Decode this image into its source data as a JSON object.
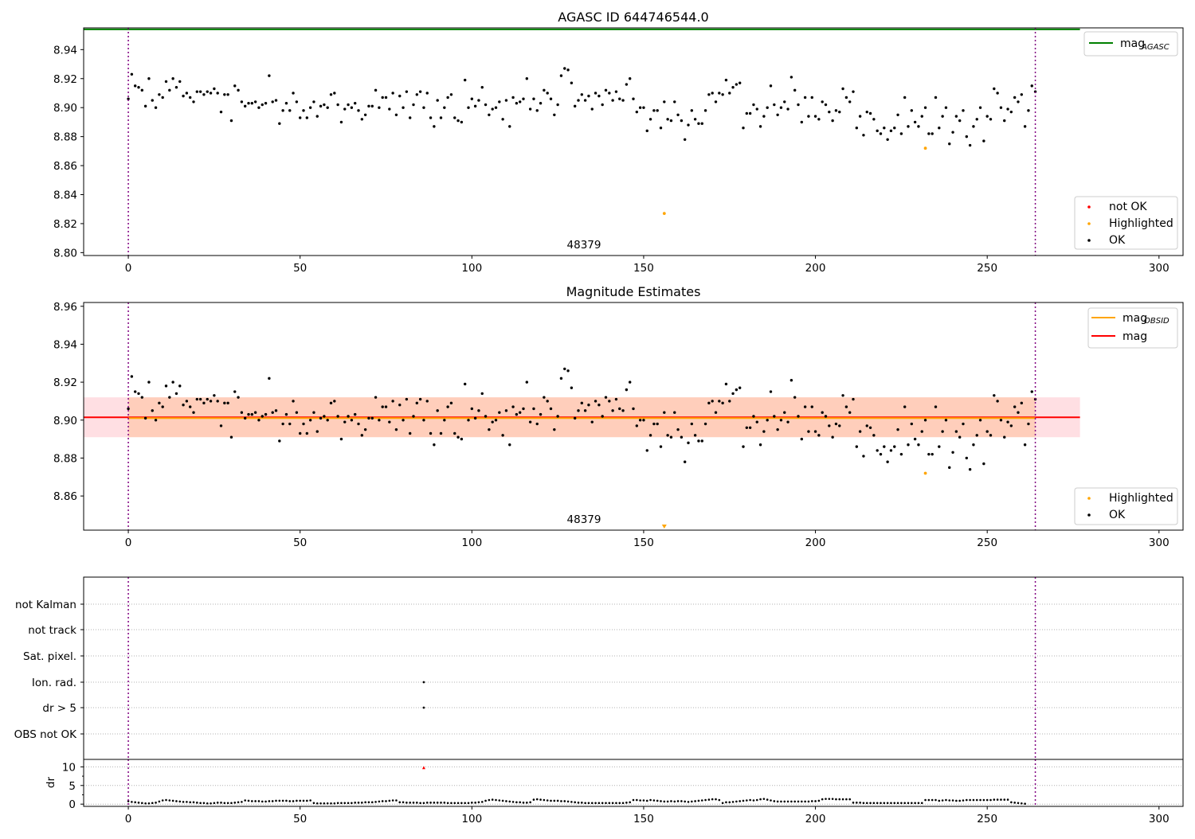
{
  "chart_data": [
    {
      "id": "top",
      "type": "scatter",
      "title": "AGASC ID 644746544.0",
      "annotation": "48379",
      "xlim": [
        -13,
        307
      ],
      "ylim": [
        8.798,
        8.955
      ],
      "xticks": [
        0,
        50,
        100,
        150,
        200,
        250,
        300
      ],
      "yticks": [
        8.8,
        8.82,
        8.84,
        8.86,
        8.88,
        8.9,
        8.92,
        8.94
      ],
      "ytick_labels": [
        "8.80",
        "8.82",
        "8.84",
        "8.86",
        "8.88",
        "8.90",
        "8.92",
        "8.94"
      ],
      "vlines": [
        0,
        264
      ],
      "mag_agasc": 8.954,
      "legend_lines": [
        {
          "label": "mag",
          "sub": "AGASC",
          "color": "#008000"
        }
      ],
      "legend_points": [
        {
          "label": "not OK",
          "color": "#ff0000"
        },
        {
          "label": "Highlighted",
          "color": "#ffa500"
        },
        {
          "label": "OK",
          "color": "#000000"
        }
      ],
      "highlighted": [
        {
          "x": 156,
          "y": 8.827
        },
        {
          "x": 232,
          "y": 8.872
        }
      ],
      "not_ok": []
    },
    {
      "id": "mid",
      "type": "scatter",
      "title": "Magnitude Estimates",
      "annotation": "48379",
      "xlim": [
        -13,
        307
      ],
      "ylim": [
        8.842,
        8.962
      ],
      "xticks": [
        0,
        50,
        100,
        150,
        200,
        250,
        300
      ],
      "yticks": [
        8.86,
        8.88,
        8.9,
        8.92,
        8.94,
        8.96
      ],
      "ytick_labels": [
        "8.86",
        "8.88",
        "8.90",
        "8.92",
        "8.94",
        "8.96"
      ],
      "vlines": [
        0,
        264
      ],
      "mag": 8.9015,
      "mag_obsid": 8.9015,
      "band": [
        8.891,
        8.912
      ],
      "legend_lines": [
        {
          "label": "mag",
          "sub": "OBSID",
          "color": "#ffa500"
        },
        {
          "label": "mag",
          "sub": "",
          "color": "#ff0000"
        }
      ],
      "legend_points": [
        {
          "label": "Highlighted",
          "color": "#ffa500"
        },
        {
          "label": "OK",
          "color": "#000000"
        }
      ],
      "highlighted": [
        {
          "x": 232,
          "y": 8.872
        }
      ],
      "offscale_marker": {
        "x": 156,
        "color": "#ffa500"
      }
    },
    {
      "id": "flags",
      "type": "scatter",
      "xlim": [
        -13,
        307
      ],
      "categories": [
        "not Kalman",
        "not track",
        "Sat. pixel.",
        "Ion. rad.",
        "dr > 5",
        "OBS not OK"
      ],
      "vlines": [
        0,
        264
      ],
      "flag_points": [
        {
          "x": 86,
          "category": "Ion. rad."
        },
        {
          "x": 86,
          "category": "dr > 5"
        }
      ]
    },
    {
      "id": "dr",
      "type": "scatter",
      "ylabel": "dr",
      "xlim": [
        -13,
        307
      ],
      "ylim": [
        -0.6,
        12
      ],
      "xticks": [
        0,
        50,
        100,
        150,
        200,
        250,
        300
      ],
      "yticks": [
        0,
        5,
        10
      ],
      "ytick_labels": [
        "0",
        "5",
        "10"
      ],
      "vlines": [
        0,
        264
      ],
      "outlier": {
        "x": 86,
        "y": 9.8,
        "color": "#ff0000"
      }
    }
  ],
  "colors": {
    "ok": "#000000",
    "highlighted": "#ffa500",
    "not_ok": "#ff0000",
    "vline": "#800080",
    "band_fill": "#ffc0c8",
    "band_fill_inner": "#ffd8c0"
  },
  "mag_series": [
    8.906,
    8.923,
    8.915,
    8.914,
    8.912,
    8.901,
    8.92,
    8.905,
    8.9,
    8.909,
    8.907,
    8.918,
    8.912,
    8.92,
    8.914,
    8.918,
    8.908,
    8.91,
    8.907,
    8.904,
    8.911,
    8.911,
    8.909,
    8.911,
    8.91,
    8.913,
    8.91,
    8.897,
    8.909,
    8.909,
    8.891,
    8.915,
    8.912,
    8.904,
    8.901,
    8.903,
    8.903,
    8.904,
    8.9,
    8.902,
    8.903,
    8.922,
    8.904,
    8.905,
    8.889,
    8.898,
    8.903,
    8.898,
    8.91,
    8.904,
    8.893,
    8.898,
    8.893,
    8.9,
    8.904,
    8.894,
    8.901,
    8.902,
    8.9,
    8.909,
    8.91,
    8.902,
    8.89,
    8.899,
    8.902,
    8.9,
    8.903,
    8.898,
    8.892,
    8.895,
    8.901,
    8.901,
    8.912,
    8.9,
    8.907,
    8.907,
    8.899,
    8.91,
    8.895,
    8.908,
    8.9,
    8.911,
    8.893,
    8.902,
    8.909,
    8.911,
    8.9,
    8.91,
    8.893,
    8.887,
    8.905,
    8.893,
    8.9,
    8.907,
    8.909,
    8.893,
    8.891,
    8.89,
    8.919,
    8.9,
    8.906,
    8.901,
    8.905,
    8.914,
    8.902,
    8.895,
    8.899,
    8.9,
    8.904,
    8.892,
    8.905,
    8.887,
    8.907,
    8.903,
    8.904,
    8.906,
    8.92,
    8.899,
    8.906,
    8.898,
    8.903,
    8.912,
    8.91,
    8.906,
    8.895,
    8.902,
    8.922,
    8.927,
    8.926,
    8.917,
    8.901,
    8.905,
    8.909,
    8.905,
    8.908,
    8.899,
    8.91,
    8.908,
    8.902,
    8.912,
    8.91,
    8.905,
    8.911,
    8.906,
    8.905,
    8.916,
    8.92,
    8.906,
    8.897,
    8.9,
    8.9,
    8.884,
    8.892,
    8.898,
    8.898,
    8.886,
    8.904,
    8.892,
    8.891,
    8.904,
    8.895,
    8.891,
    8.878,
    8.888,
    8.898,
    8.892,
    8.889,
    8.889,
    8.898,
    8.909,
    8.91,
    8.904,
    8.91,
    8.909,
    8.919,
    8.91,
    8.914,
    8.916,
    8.917,
    8.886,
    8.896,
    8.896,
    8.902,
    8.899,
    8.887,
    8.894,
    8.9,
    8.915,
    8.902,
    8.895,
    8.9,
    8.904,
    8.899,
    8.921,
    8.912,
    8.902,
    8.89,
    8.907,
    8.894,
    8.907,
    8.894,
    8.892,
    8.904,
    8.902,
    8.897,
    8.891,
    8.898,
    8.897,
    8.913,
    8.907,
    8.904,
    8.911,
    8.886,
    8.894,
    8.881,
    8.897,
    8.896,
    8.892,
    8.884,
    8.882,
    8.886,
    8.878,
    8.884,
    8.886,
    8.895,
    8.882,
    8.907,
    8.887,
    8.898,
    8.89,
    8.887,
    8.894,
    8.9,
    8.882,
    8.882,
    8.907,
    8.886,
    8.894,
    8.9,
    8.875,
    8.883,
    8.894,
    8.891,
    8.898,
    8.88,
    8.874,
    8.887,
    8.892,
    8.9,
    8.877,
    8.894,
    8.892,
    8.913,
    8.91,
    8.9,
    8.891,
    8.899,
    8.897,
    8.907,
    8.904,
    8.909,
    8.887,
    8.898,
    8.915,
    8.911
  ],
  "dr_series": [
    0.8,
    0.6,
    0.5,
    0.4,
    0.3,
    0.2,
    0.2,
    0.3,
    0.4,
    0.7,
    1.0,
    1.1,
    1.0,
    0.9,
    0.8,
    0.7,
    0.6,
    0.6,
    0.5,
    0.5,
    0.4,
    0.3,
    0.3,
    0.2,
    0.2,
    0.3,
    0.4,
    0.4,
    0.3,
    0.3,
    0.3,
    0.4,
    0.5,
    0.6,
    1.0,
    0.9,
    0.8,
    0.8,
    0.8,
    0.7,
    0.7,
    0.8,
    0.8,
    0.9,
    0.9,
    0.9,
    0.9,
    0.8,
    0.8,
    0.9,
    0.9,
    0.9,
    0.9,
    1.0,
    0.3,
    0.2,
    0.2,
    0.2,
    0.2,
    0.2,
    0.2,
    0.3,
    0.3,
    0.3,
    0.3,
    0.3,
    0.4,
    0.4,
    0.4,
    0.5,
    0.5,
    0.5,
    0.6,
    0.7,
    0.8,
    0.8,
    0.9,
    1.0,
    1.0,
    0.5,
    0.5,
    0.4,
    0.4,
    0.4,
    0.4,
    0.3,
    0.3,
    0.4,
    0.4,
    0.4,
    0.4,
    0.4,
    0.4,
    0.3,
    0.3,
    0.3,
    0.3,
    0.3,
    0.3,
    0.3,
    0.4,
    0.4,
    0.5,
    0.6,
    0.9,
    1.1,
    1.2,
    1.1,
    1.0,
    0.9,
    0.8,
    0.7,
    0.6,
    0.5,
    0.5,
    0.4,
    0.4,
    0.5,
    1.2,
    1.3,
    1.2,
    1.1,
    1.0,
    0.9,
    0.9,
    0.9,
    0.8,
    0.8,
    0.7,
    0.6,
    0.5,
    0.4,
    0.4,
    0.3,
    0.3,
    0.3,
    0.3,
    0.3,
    0.3,
    0.3,
    0.3,
    0.3,
    0.3,
    0.3,
    0.3,
    0.4,
    0.5,
    1.1,
    1.1,
    1.0,
    1.0,
    0.9,
    1.1,
    1.0,
    0.9,
    0.8,
    0.7,
    0.7,
    0.8,
    0.7,
    0.8,
    0.8,
    0.7,
    0.6,
    0.7,
    0.8,
    0.9,
    1.0,
    1.1,
    1.2,
    1.3,
    1.3,
    1.1,
    0.3,
    0.5,
    0.5,
    0.6,
    0.7,
    0.8,
    0.9,
    1.0,
    1.1,
    1.0,
    1.1,
    1.3,
    1.4,
    1.2,
    1.0,
    0.8,
    0.7,
    0.7,
    0.7,
    0.7,
    0.7,
    0.7,
    0.7,
    0.7,
    0.7,
    0.7,
    0.8,
    0.8,
    0.9,
    1.3,
    1.4,
    1.4,
    1.4,
    1.3,
    1.3,
    1.3,
    1.3,
    1.3,
    0.4,
    0.4,
    0.4,
    0.3,
    0.3,
    0.3,
    0.3,
    0.3,
    0.3,
    0.3,
    0.3,
    0.3,
    0.3,
    0.3,
    0.3,
    0.3,
    0.3,
    0.3,
    0.3,
    0.3,
    0.3,
    1.1,
    1.1,
    1.1,
    1.1,
    0.9,
    1.0,
    1.1,
    1.0,
    1.0,
    0.9,
    0.9,
    1.0,
    1.1,
    1.1,
    1.1,
    1.1,
    1.1,
    1.1,
    1.1,
    1.1,
    1.2,
    1.2,
    1.2,
    1.2,
    1.2,
    0.5,
    0.4,
    0.3,
    0.2,
    0.1
  ]
}
